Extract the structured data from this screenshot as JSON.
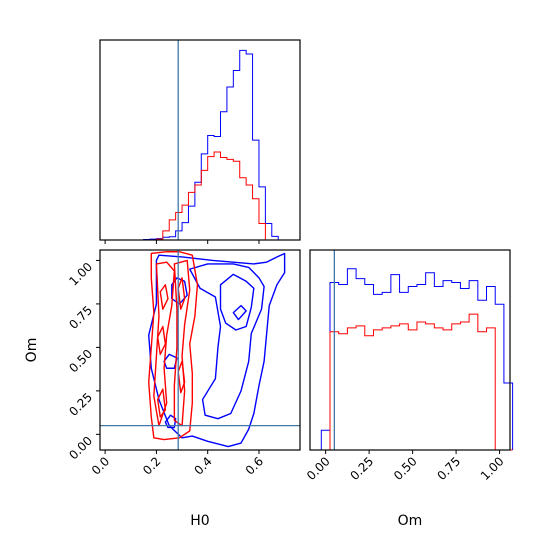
{
  "chart_data": [
    {
      "type": "histogram",
      "panel": "H0 marginal",
      "truth": 0.285,
      "bin_edges": [
        0.0,
        0.025,
        0.05,
        0.075,
        0.1,
        0.125,
        0.15,
        0.175,
        0.2,
        0.225,
        0.25,
        0.275,
        0.3,
        0.325,
        0.35,
        0.375,
        0.4,
        0.425,
        0.45,
        0.475,
        0.5,
        0.525,
        0.55,
        0.575,
        0.6,
        0.625,
        0.65,
        0.675,
        0.7,
        0.725
      ],
      "series": [
        {
          "color": "#0000ff",
          "values": [
            0,
            0,
            0,
            0,
            0,
            0,
            0.5,
            1,
            1.5,
            3,
            3.5,
            10,
            19,
            37,
            63,
            94,
            114,
            113,
            140,
            167,
            185,
            207,
            203,
            109,
            58,
            18,
            4,
            0,
            0
          ]
        },
        {
          "color": "#ff0000",
          "values": [
            0,
            0,
            0,
            0,
            0,
            0,
            0,
            0,
            1,
            10,
            22,
            30,
            38,
            52,
            60,
            76,
            91,
            96,
            90,
            88,
            86,
            68,
            60,
            45,
            18,
            0,
            0,
            0,
            0
          ]
        }
      ],
      "ylim": [
        0,
        215
      ]
    },
    {
      "type": "contour",
      "panel": "H0 vs Om joint",
      "xlabel": "H0",
      "ylabel": "Om",
      "xlim": [
        -0.02,
        0.76
      ],
      "ylim": [
        -0.09,
        1.06
      ],
      "xticks": [
        0.0,
        0.2,
        0.4,
        0.6
      ],
      "xtick_labels": [
        "0.0",
        "0.2",
        "0.4",
        "0.6"
      ],
      "yticks": [
        0.0,
        0.25,
        0.5,
        0.75,
        1.0
      ],
      "ytick_labels": [
        "0.00",
        "0.25",
        "0.50",
        "0.75",
        "1.00"
      ],
      "truth": {
        "x": 0.285,
        "y": 0.05
      },
      "series": [
        {
          "color": "#0000ff",
          "contours": [
            [
              [
                0.2,
                1.0
              ],
              [
                0.21,
                1.03
              ],
              [
                0.3,
                1.02
              ],
              [
                0.42,
                1.0
              ],
              [
                0.58,
                0.98
              ],
              [
                0.63,
                0.99
              ],
              [
                0.67,
                1.02
              ],
              [
                0.7,
                1.04
              ],
              [
                0.7,
                0.93
              ],
              [
                0.67,
                0.86
              ],
              [
                0.64,
                0.74
              ],
              [
                0.63,
                0.58
              ],
              [
                0.62,
                0.42
              ],
              [
                0.6,
                0.28
              ],
              [
                0.58,
                0.12
              ],
              [
                0.56,
                0.03
              ],
              [
                0.53,
                -0.05
              ],
              [
                0.48,
                -0.07
              ],
              [
                0.4,
                -0.04
              ],
              [
                0.34,
                -0.01
              ],
              [
                0.3,
                -0.02
              ],
              [
                0.25,
                0.05
              ],
              [
                0.21,
                0.2
              ],
              [
                0.18,
                0.38
              ],
              [
                0.17,
                0.57
              ],
              [
                0.2,
                0.75
              ],
              [
                0.2,
                1.0
              ]
            ],
            [
              [
                0.33,
                0.95
              ],
              [
                0.4,
                0.98
              ],
              [
                0.5,
                0.98
              ],
              [
                0.56,
                0.96
              ],
              [
                0.6,
                0.9
              ],
              [
                0.62,
                0.85
              ],
              [
                0.61,
                0.72
              ],
              [
                0.57,
                0.58
              ],
              [
                0.56,
                0.42
              ],
              [
                0.53,
                0.25
              ],
              [
                0.49,
                0.12
              ],
              [
                0.44,
                0.09
              ],
              [
                0.39,
                0.11
              ],
              [
                0.38,
                0.2
              ],
              [
                0.43,
                0.32
              ],
              [
                0.44,
                0.5
              ],
              [
                0.45,
                0.62
              ],
              [
                0.43,
                0.79
              ],
              [
                0.37,
                0.84
              ],
              [
                0.33,
                0.95
              ]
            ],
            [
              [
                0.45,
                0.86
              ],
              [
                0.5,
                0.92
              ],
              [
                0.55,
                0.88
              ],
              [
                0.58,
                0.84
              ],
              [
                0.57,
                0.73
              ],
              [
                0.55,
                0.62
              ],
              [
                0.51,
                0.6
              ],
              [
                0.47,
                0.64
              ],
              [
                0.45,
                0.72
              ],
              [
                0.45,
                0.86
              ]
            ],
            [
              [
                0.26,
                0.86
              ],
              [
                0.28,
                0.9
              ],
              [
                0.31,
                0.88
              ],
              [
                0.32,
                0.8
              ],
              [
                0.29,
                0.75
              ],
              [
                0.26,
                0.78
              ],
              [
                0.26,
                0.86
              ]
            ],
            [
              [
                0.5,
                0.7
              ],
              [
                0.53,
                0.74
              ],
              [
                0.55,
                0.71
              ],
              [
                0.52,
                0.66
              ],
              [
                0.5,
                0.7
              ]
            ],
            [
              [
                0.23,
                0.42
              ],
              [
                0.25,
                0.46
              ],
              [
                0.28,
                0.44
              ],
              [
                0.27,
                0.38
              ],
              [
                0.24,
                0.38
              ],
              [
                0.23,
                0.42
              ]
            ],
            [
              [
                0.235,
                0.07
              ],
              [
                0.255,
                0.11
              ],
              [
                0.275,
                0.09
              ],
              [
                0.27,
                0.04
              ],
              [
                0.245,
                0.04
              ],
              [
                0.235,
                0.07
              ]
            ]
          ]
        },
        {
          "color": "#ff0000",
          "contours": [
            [
              [
                0.18,
                1.04
              ],
              [
                0.24,
                1.05
              ],
              [
                0.29,
                1.05
              ],
              [
                0.34,
                1.03
              ],
              [
                0.36,
                0.86
              ],
              [
                0.35,
                0.68
              ],
              [
                0.33,
                0.52
              ],
              [
                0.34,
                0.35
              ],
              [
                0.34,
                0.18
              ],
              [
                0.33,
                0.02
              ],
              [
                0.29,
                -0.02
              ],
              [
                0.23,
                -0.03
              ],
              [
                0.19,
                -0.02
              ],
              [
                0.18,
                0.1
              ],
              [
                0.17,
                0.3
              ],
              [
                0.18,
                0.5
              ],
              [
                0.19,
                0.7
              ],
              [
                0.18,
                0.9
              ],
              [
                0.18,
                1.04
              ]
            ],
            [
              [
                0.2,
                0.98
              ],
              [
                0.24,
                0.99
              ],
              [
                0.27,
                0.94
              ],
              [
                0.26,
                0.74
              ],
              [
                0.24,
                0.57
              ],
              [
                0.23,
                0.38
              ],
              [
                0.24,
                0.18
              ],
              [
                0.21,
                0.05
              ],
              [
                0.19,
                0.22
              ],
              [
                0.2,
                0.45
              ],
              [
                0.21,
                0.68
              ],
              [
                0.2,
                0.98
              ]
            ],
            [
              [
                0.27,
                0.98
              ],
              [
                0.32,
                1.0
              ],
              [
                0.33,
                0.83
              ],
              [
                0.31,
                0.63
              ],
              [
                0.3,
                0.45
              ],
              [
                0.31,
                0.25
              ],
              [
                0.3,
                0.05
              ],
              [
                0.27,
                0.08
              ],
              [
                0.27,
                0.28
              ],
              [
                0.28,
                0.5
              ],
              [
                0.28,
                0.72
              ],
              [
                0.27,
                0.98
              ]
            ],
            [
              [
                0.215,
                0.82
              ],
              [
                0.235,
                0.86
              ],
              [
                0.245,
                0.78
              ],
              [
                0.225,
                0.72
              ],
              [
                0.215,
                0.82
              ]
            ],
            [
              [
                0.205,
                0.56
              ],
              [
                0.225,
                0.62
              ],
              [
                0.235,
                0.52
              ],
              [
                0.215,
                0.46
              ],
              [
                0.205,
                0.56
              ]
            ],
            [
              [
                0.205,
                0.2
              ],
              [
                0.225,
                0.26
              ],
              [
                0.235,
                0.14
              ],
              [
                0.215,
                0.1
              ],
              [
                0.205,
                0.2
              ]
            ],
            [
              [
                0.285,
                0.84
              ],
              [
                0.3,
                0.9
              ],
              [
                0.31,
                0.78
              ],
              [
                0.295,
                0.72
              ],
              [
                0.285,
                0.84
              ]
            ],
            [
              [
                0.285,
                0.36
              ],
              [
                0.3,
                0.42
              ],
              [
                0.31,
                0.3
              ],
              [
                0.295,
                0.24
              ],
              [
                0.285,
                0.36
              ]
            ]
          ]
        }
      ]
    },
    {
      "type": "histogram",
      "panel": "Om marginal",
      "xlabel": "Om",
      "truth": 0.05,
      "xlim": [
        -0.09,
        1.06
      ],
      "xticks": [
        0.0,
        0.25,
        0.5,
        0.75,
        1.0
      ],
      "xtick_labels": [
        "0.00",
        "0.25",
        "0.50",
        "0.75",
        "1.00"
      ],
      "bin_edges": [
        -0.075,
        -0.025,
        0.025,
        0.075,
        0.125,
        0.175,
        0.225,
        0.275,
        0.325,
        0.375,
        0.425,
        0.475,
        0.525,
        0.575,
        0.625,
        0.675,
        0.725,
        0.775,
        0.825,
        0.875,
        0.925,
        0.975,
        1.025,
        1.075
      ],
      "series": [
        {
          "color": "#0000ff",
          "values": [
            0,
            10,
            85,
            84,
            92,
            87,
            84,
            79,
            80,
            89,
            80,
            83,
            84,
            90,
            83,
            86,
            85,
            82,
            86,
            76,
            83,
            74,
            34
          ]
        },
        {
          "color": "#ff0000",
          "values": [
            0,
            0,
            60,
            59,
            62,
            63,
            58,
            61,
            62,
            63,
            64,
            61,
            65,
            64,
            62,
            61,
            64,
            65,
            69,
            60,
            62,
            0,
            0
          ]
        }
      ],
      "ylim": [
        0,
        100
      ]
    }
  ]
}
